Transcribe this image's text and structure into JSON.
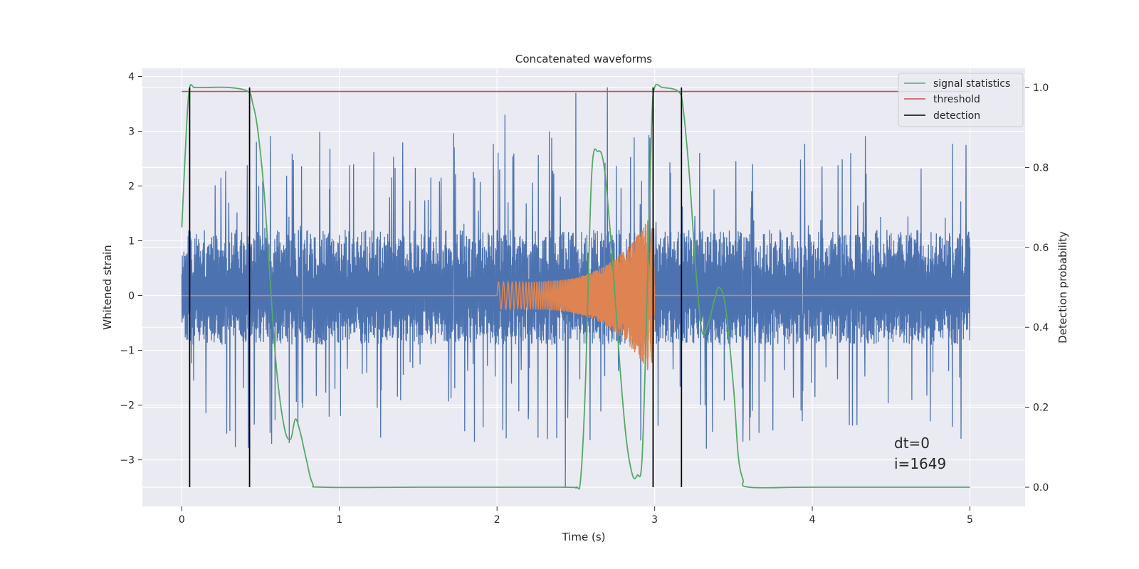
{
  "chart_data": {
    "type": "line",
    "title": "Concatenated waveforms",
    "xlabel": "Time (s)",
    "ylabel_left": "Whitened strain",
    "ylabel_right": "Detection probability",
    "xlim": [
      -0.25,
      5.35
    ],
    "ylim_left": [
      -3.85,
      4.15
    ],
    "ylim_right": [
      -0.048,
      1.048
    ],
    "x_ticks": [
      0,
      1,
      2,
      3,
      4,
      5
    ],
    "x_tick_labels": [
      "0",
      "1",
      "2",
      "3",
      "4",
      "5"
    ],
    "y_left_ticks": [
      -3,
      -2,
      -1,
      0,
      1,
      2,
      3,
      4
    ],
    "y_left_tick_labels": [
      "−3",
      "−2",
      "−1",
      "0",
      "1",
      "2",
      "3",
      "4"
    ],
    "y_right_ticks": [
      0.0,
      0.2,
      0.4,
      0.6,
      0.8,
      1.0
    ],
    "y_right_tick_labels": [
      "0.0",
      "0.2",
      "0.4",
      "0.6",
      "0.8",
      "1.0"
    ],
    "grid": true,
    "legend_position": "top-right",
    "legend": [
      {
        "label": "signal statistics",
        "color": "#55a868"
      },
      {
        "label": "threshold",
        "color": "#c44e52"
      },
      {
        "label": "detection",
        "color": "#000000"
      }
    ],
    "series": [
      {
        "name": "strain noise",
        "axis": "left",
        "color": "#4c72b0",
        "x_range": [
          0,
          5
        ],
        "amplitude_core": [
          -0.6,
          0.9
        ],
        "amplitude_peaks": [
          -3.5,
          3.8
        ]
      },
      {
        "name": "injected chirp",
        "axis": "left",
        "color": "#dd8452",
        "x_range": [
          2.0,
          3.0
        ],
        "amplitude_start": 0.25,
        "amplitude_peak": 1.6
      },
      {
        "name": "signal statistics",
        "axis": "right",
        "color": "#55a868",
        "x": [
          0,
          0.03,
          0.05,
          0.08,
          0.15,
          0.3,
          0.42,
          0.45,
          0.48,
          0.52,
          0.56,
          0.6,
          0.65,
          0.69,
          0.72,
          0.75,
          0.79,
          0.83,
          0.9,
          1.5,
          2.4,
          2.5,
          2.53,
          2.56,
          2.6,
          2.64,
          2.68,
          2.73,
          2.78,
          2.82,
          2.86,
          2.89,
          2.92,
          2.95,
          2.98,
          3.0,
          3.05,
          3.15,
          3.18,
          3.22,
          3.26,
          3.3,
          3.34,
          3.38,
          3.41,
          3.45,
          3.5,
          3.53,
          3.56,
          3.6,
          4.0,
          5.0
        ],
        "y": [
          0.65,
          0.9,
          1.0,
          1.0,
          1.0,
          1.0,
          0.99,
          0.96,
          0.9,
          0.75,
          0.52,
          0.3,
          0.15,
          0.12,
          0.17,
          0.14,
          0.07,
          0.01,
          0.0,
          0.0,
          0.0,
          0.0,
          0.02,
          0.25,
          0.78,
          0.84,
          0.8,
          0.58,
          0.3,
          0.12,
          0.03,
          0.03,
          0.07,
          0.45,
          0.9,
          1.0,
          1.0,
          0.99,
          0.95,
          0.78,
          0.55,
          0.39,
          0.41,
          0.47,
          0.5,
          0.45,
          0.25,
          0.08,
          0.02,
          0.0,
          0.0,
          0.0
        ]
      },
      {
        "name": "threshold",
        "axis": "right",
        "color": "#c44e52",
        "x": [
          0,
          5
        ],
        "y": [
          0.99,
          0.99
        ]
      },
      {
        "name": "detection",
        "axis": "right",
        "color": "#000000",
        "type": "vlines",
        "x": [
          0.05,
          0.43,
          2.99,
          3.17
        ],
        "ymin": 0.0,
        "ymax": 1.0
      }
    ],
    "annotations": [
      "dt=0",
      "i=1649"
    ]
  }
}
